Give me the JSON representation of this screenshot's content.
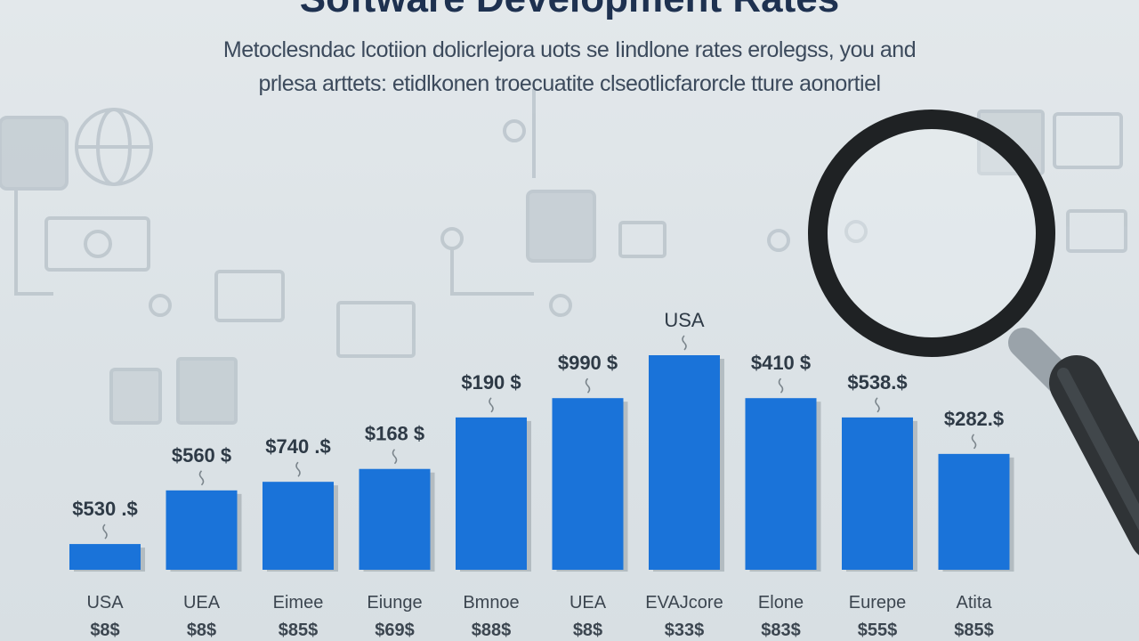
{
  "title": "Software Development Rates",
  "subtitle_lines": [
    "Metoclesndac lcotiion dolicrlejora uots se Iindlone rates erolegss, you and",
    "prlesa arttets: etidlkonen troecuatite clseotlicfarorcle tture aonortiel"
  ],
  "chart_data": {
    "type": "bar",
    "title": "Software Development Rates",
    "categories": [
      "USA",
      "UEA",
      "Eimee",
      "Eiunge",
      "Bmnoe",
      "UEA",
      "EVAJcore",
      "Elone",
      "Eurepe",
      "Atita"
    ],
    "category_sublabels": [
      "$8$",
      "$8$",
      "$85$",
      "$69$",
      "$88$",
      "$8$",
      "$33$",
      "$83$",
      "$55$",
      "$85$"
    ],
    "data_labels": [
      "$530 .$",
      "$560 $",
      "$740 .$",
      "$168 $",
      "$190 $",
      "$990 $",
      "USA",
      "$410 $",
      "$538.$",
      "$282.$"
    ],
    "values": [
      12,
      37,
      41,
      47,
      71,
      80,
      100,
      80,
      71,
      54
    ],
    "ylim": [
      0,
      100
    ],
    "grid": false,
    "legend": "none",
    "bar_color": "#1a73d9"
  },
  "decor": {
    "magnifier_icon": "magnifying-glass-icon",
    "background_icons": [
      "wallet-icon",
      "globe-icon",
      "banknote-icon",
      "document-icon",
      "monitor-icon",
      "calendar-icon",
      "briefcase-icon"
    ]
  }
}
